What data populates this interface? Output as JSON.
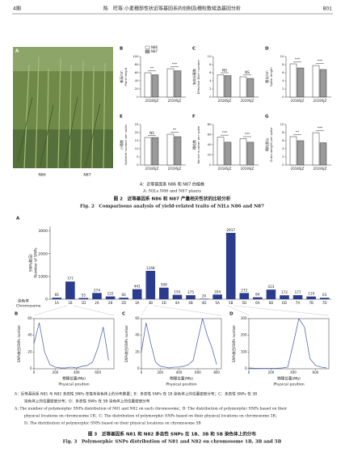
{
  "header": {
    "issue": "4期",
    "running_title": "陈　旺等:小麦穗部性状近等基因系的创制及穗粒数候选基因分析",
    "page": "801"
  },
  "figure2": {
    "photo": {
      "label": "A",
      "lines": [
        "N86",
        "N87"
      ]
    },
    "legend": [
      {
        "name": "N86",
        "color": "#ffffff"
      },
      {
        "name": "N87",
        "color": "#9a9a9a"
      }
    ],
    "categories": [
      "2018SJZ",
      "2019SJZ"
    ],
    "panels": [
      {
        "label": "B",
        "ylabel_cn": "株高/cm",
        "ylabel_en": "Plant height",
        "ylim": [
          0,
          100
        ],
        "yticks": [
          0,
          20,
          40,
          60,
          80,
          100
        ],
        "series": [
          [
            60,
            70
          ],
          [
            55,
            65
          ]
        ],
        "significance": [
          "**",
          "***"
        ]
      },
      {
        "label": "C",
        "ylabel_cn": "有效分蘖数",
        "ylabel_en": "Effective tiller number",
        "ylim": [
          0,
          10
        ],
        "yticks": [
          0,
          2,
          4,
          6,
          8,
          10
        ],
        "series": [
          [
            5.5,
            5
          ],
          [
            5.3,
            4.6
          ]
        ],
        "significance": [
          "NS",
          "NS"
        ]
      },
      {
        "label": "D",
        "ylabel_cn": "穗长/cm",
        "ylabel_en": "Spike length",
        "ylim": [
          0,
          10
        ],
        "yticks": [
          0,
          2,
          4,
          6,
          8,
          10
        ],
        "series": [
          [
            8.2,
            7.8
          ],
          [
            7.2,
            6.8
          ]
        ],
        "significance": [
          "***",
          "***"
        ]
      },
      {
        "label": "E",
        "ylabel_cn": "小穗数",
        "ylabel_en": "Spikelet number per spike",
        "ylim": [
          0,
          25
        ],
        "yticks": [
          0,
          5,
          10,
          15,
          20,
          25
        ],
        "series": [
          [
            17,
            19
          ],
          [
            17,
            17.5
          ]
        ],
        "significance": [
          "NS",
          "**"
        ]
      },
      {
        "label": "F",
        "ylabel_cn": "穗粒数",
        "ylabel_en": "Kernel number per spike",
        "ylim": [
          0,
          80
        ],
        "yticks": [
          0,
          20,
          40,
          60,
          80
        ],
        "series": [
          [
            55,
            52
          ],
          [
            45,
            45
          ]
        ],
        "significance": [
          "***",
          "***"
        ]
      },
      {
        "label": "G",
        "ylabel_cn": "穗粒重/g",
        "ylabel_en": "Grain weight per spike",
        "ylim": [
          0,
          10
        ],
        "yticks": [
          0,
          2,
          4,
          6,
          8,
          10
        ],
        "series": [
          [
            7,
            8
          ],
          [
            6,
            5.5
          ]
        ],
        "significance": [
          "**",
          "***"
        ]
      }
    ],
    "caption_cn": "A：近等基因系 N86 和 N87 的植株",
    "caption_en": "A: NILs N86 and N87 plants",
    "title_cn": "图 2　近等基因系 N86 和 N87 产量相关性状的比较分析",
    "title_en": "Fig. 2　Comparisons analysis of yield-related traits of NILs N86 and N87"
  },
  "figure3": {
    "panel_a": {
      "type": "bar",
      "label": "A",
      "ylabel_cn": "SNPs数目/",
      "ylabel_en": "Number of SNPs",
      "xlabel_cn": "染色体",
      "xlabel_en": "Chromosome",
      "color": "#2b3c8f",
      "categories": [
        "1A",
        "1B",
        "1D",
        "2A",
        "2B",
        "2D",
        "3A",
        "3B",
        "3D",
        "4A",
        "4B",
        "4D",
        "5A",
        "5B",
        "5D",
        "6A",
        "6B",
        "6D",
        "7A",
        "7B",
        "7D"
      ],
      "values": [
        66,
        777,
        55,
        274,
        122,
        66,
        441,
        1248,
        508,
        193,
        175,
        20,
        204,
        2917,
        272,
        84,
        423,
        172,
        177,
        119,
        63
      ],
      "ylim": [
        0,
        3200
      ],
      "yticks": [
        0,
        1000,
        2000,
        3000
      ]
    },
    "density_panels": [
      {
        "type": "line",
        "label": "B",
        "ylabel": "SNPs数目/SNPs number",
        "xlabel_cn": "物理位置(Mb)",
        "xlabel_en": "Physical position",
        "color": "#3a58a8",
        "x": [
          0,
          50,
          100,
          150,
          200,
          250,
          300,
          350,
          400,
          450,
          500,
          550,
          600,
          650,
          700
        ],
        "values": [
          30,
          55,
          20,
          5,
          2,
          1,
          1,
          2,
          1,
          3,
          4,
          8,
          25,
          50,
          10
        ],
        "xlim": [
          0,
          750
        ],
        "xticks": [
          0,
          200,
          400,
          600
        ],
        "ylim": [
          0,
          60
        ],
        "yticks": [
          0,
          20,
          40,
          60
        ]
      },
      {
        "type": "line",
        "label": "C",
        "ylabel": "SNPs数目/SNPs number",
        "xlabel_cn": "物理位置(Mb)",
        "xlabel_en": "Physical position",
        "color": "#3a58a8",
        "x": [
          0,
          50,
          100,
          150,
          200,
          250,
          300,
          350,
          400,
          450,
          500,
          550,
          600,
          650,
          700,
          750,
          800
        ],
        "values": [
          20,
          55,
          30,
          8,
          3,
          2,
          1,
          2,
          2,
          3,
          5,
          10,
          35,
          60,
          40,
          25,
          5
        ],
        "xlim": [
          0,
          850
        ],
        "xticks": [
          0,
          200,
          400,
          600,
          800
        ],
        "ylim": [
          0,
          60
        ],
        "yticks": [
          0,
          20,
          40,
          60
        ]
      },
      {
        "type": "line",
        "label": "D",
        "ylabel": "SNPs数目/SNPs number",
        "xlabel_cn": "物理位置(Mb)",
        "xlabel_en": "Physical position",
        "color": "#3a58a8",
        "x": [
          0,
          50,
          100,
          150,
          200,
          250,
          300,
          350,
          400,
          450,
          500,
          550,
          600,
          650,
          700
        ],
        "values": [
          5,
          3,
          2,
          2,
          2,
          3,
          5,
          10,
          150,
          300,
          250,
          60,
          20,
          10,
          5
        ],
        "xlim": [
          0,
          720
        ],
        "xticks": [
          0,
          200,
          400,
          600
        ],
        "ylim": [
          0,
          300
        ],
        "yticks": [
          0,
          100,
          200,
          300
        ]
      }
    ],
    "caption_lines": [
      "A：近等基因系 N81 与 N82 多态性 SNPs 在每条染色体上的分布数量；B：多态性 SNPs 在 1B 染色体上的位置密度分布；C：多态性 SNPs 在 3B",
      "染色体上的位置密度分布；D：多态性 SNPs 在 5B 染色体上的位置密度分布",
      "A: The number of polymorphic SNPs distribution of N81 and N82 on each chromosome；B: The distribution of polymorphic SNPs based on their",
      "physical locations on chromosome 1B；C: The distribution of polymorphic SNPs based on their physical locations on chromosome 3B；",
      "D: The distribution of polymorphic SNPs based on their physical locations on chromosome 5B"
    ],
    "title_cn": "图 3　近等基因系 N81 和 N82 多态性 SNPs 在 1B、3B 和 5B 染色体上的分布",
    "title_en": "Fig. 3　Polymorphic SNPs distribution of N81 and N82 on chromosome 1B, 3B and 5B"
  }
}
